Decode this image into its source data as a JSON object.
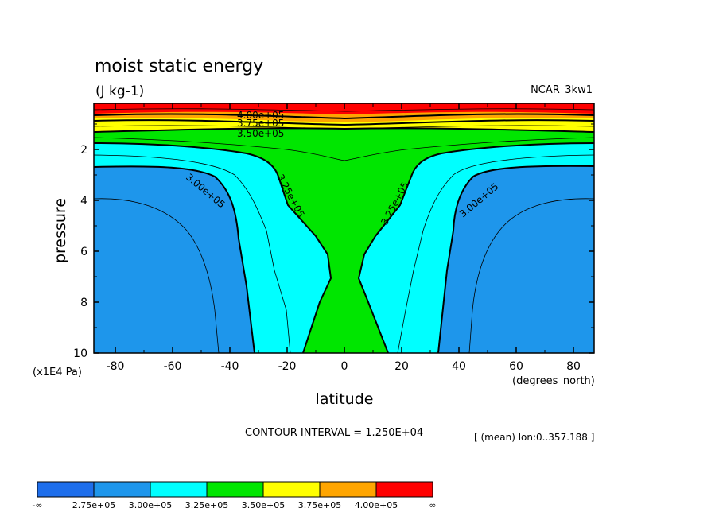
{
  "chart_data": {
    "type": "contour",
    "title": "moist static energy",
    "units": "(J kg-1)",
    "dataset": "NCAR_3kw1",
    "xlabel": "latitude",
    "xunits": "(degrees_north)",
    "ylabel": "pressure",
    "yunits": "(x1E4 Pa)",
    "xlim": [
      -87.5,
      87.5
    ],
    "ylim": [
      10,
      0.5
    ],
    "x_ticks": [
      "-80",
      "-60",
      "-40",
      "-20",
      "0",
      "20",
      "40",
      "60",
      "80"
    ],
    "y_ticks": [
      "2",
      "4",
      "6",
      "8",
      "10"
    ],
    "contour_interval": "CONTOUR INTERVAL = 1.250E+04",
    "averaging": "[ (mean) lon:0..357.188 ]",
    "contour_labels": [
      "4.00e+05",
      "3.75e+05",
      "3.50e+05",
      "3.25e+05",
      "3.25e+05",
      "3.00e+05",
      "3.00e+05"
    ],
    "colorbar": {
      "colors": [
        "#1e6eeb",
        "#1e96eb",
        "#00ffff",
        "#00e600",
        "#ffff00",
        "#ffa500",
        "#ff0000"
      ],
      "labels": [
        "-∞",
        "2.75e+05",
        "3.00e+05",
        "3.25e+05",
        "3.50e+05",
        "3.75e+05",
        "4.00e+05",
        "∞"
      ]
    },
    "fill_colors": {
      "red": "#ff0000",
      "orange": "#ffa500",
      "yellow": "#ffff00",
      "green": "#00e600",
      "cyan": "#00ffff",
      "blue": "#1e96eb"
    }
  }
}
